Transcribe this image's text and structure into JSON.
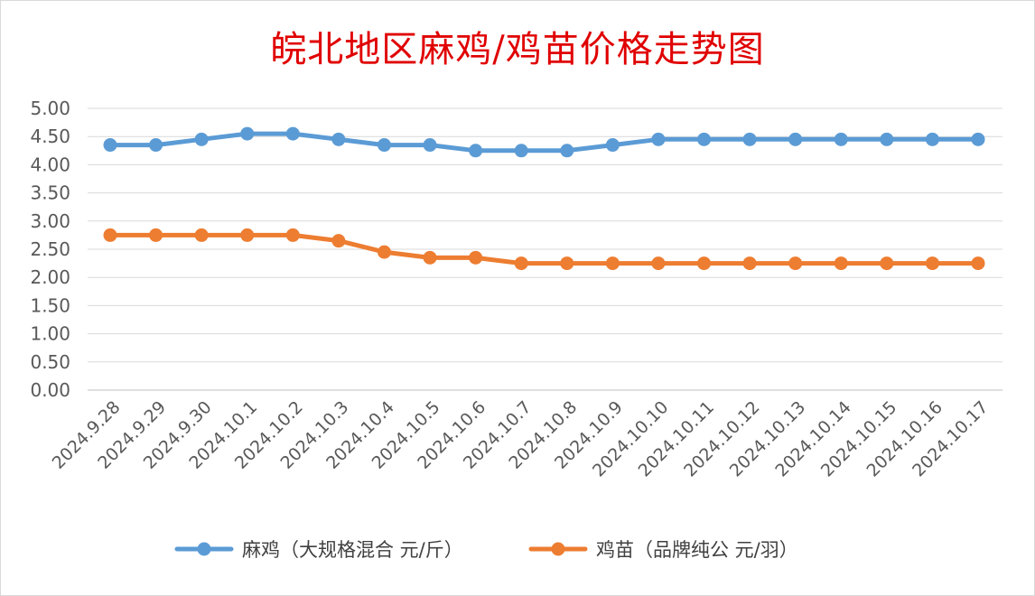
{
  "chart_data": {
    "type": "line",
    "title": "皖北地区麻鸡/鸡苗价格走势图",
    "categories": [
      "2024.9.28",
      "2024.9.29",
      "2024.9.30",
      "2024.10.1",
      "2024.10.2",
      "2024.10.3",
      "2024.10.4",
      "2024.10.5",
      "2024.10.6",
      "2024.10.7",
      "2024.10.8",
      "2024.10.9",
      "2024.10.10",
      "2024.10.11",
      "2024.10.12",
      "2024.10.13",
      "2024.10.14",
      "2024.10.15",
      "2024.10.16",
      "2024.10.17"
    ],
    "series": [
      {
        "name": "麻鸡（大规格混合 元/斤）",
        "color": "#5b9bd5",
        "values": [
          4.35,
          4.35,
          4.45,
          4.55,
          4.55,
          4.45,
          4.35,
          4.35,
          4.25,
          4.25,
          4.25,
          4.35,
          4.45,
          4.45,
          4.45,
          4.45,
          4.45,
          4.45,
          4.45,
          4.45
        ]
      },
      {
        "name": "鸡苗（品牌纯公 元/羽）",
        "color": "#ed7d31",
        "values": [
          2.75,
          2.75,
          2.75,
          2.75,
          2.75,
          2.65,
          2.45,
          2.35,
          2.35,
          2.25,
          2.25,
          2.25,
          2.25,
          2.25,
          2.25,
          2.25,
          2.25,
          2.25,
          2.25,
          2.25
        ]
      }
    ],
    "ylim": [
      0,
      5
    ],
    "yticks": [
      "0.00",
      "0.50",
      "1.00",
      "1.50",
      "2.00",
      "2.50",
      "3.00",
      "3.50",
      "4.00",
      "4.50",
      "5.00"
    ],
    "grid": true,
    "legend_position": "bottom",
    "title_color": "#e00000"
  }
}
